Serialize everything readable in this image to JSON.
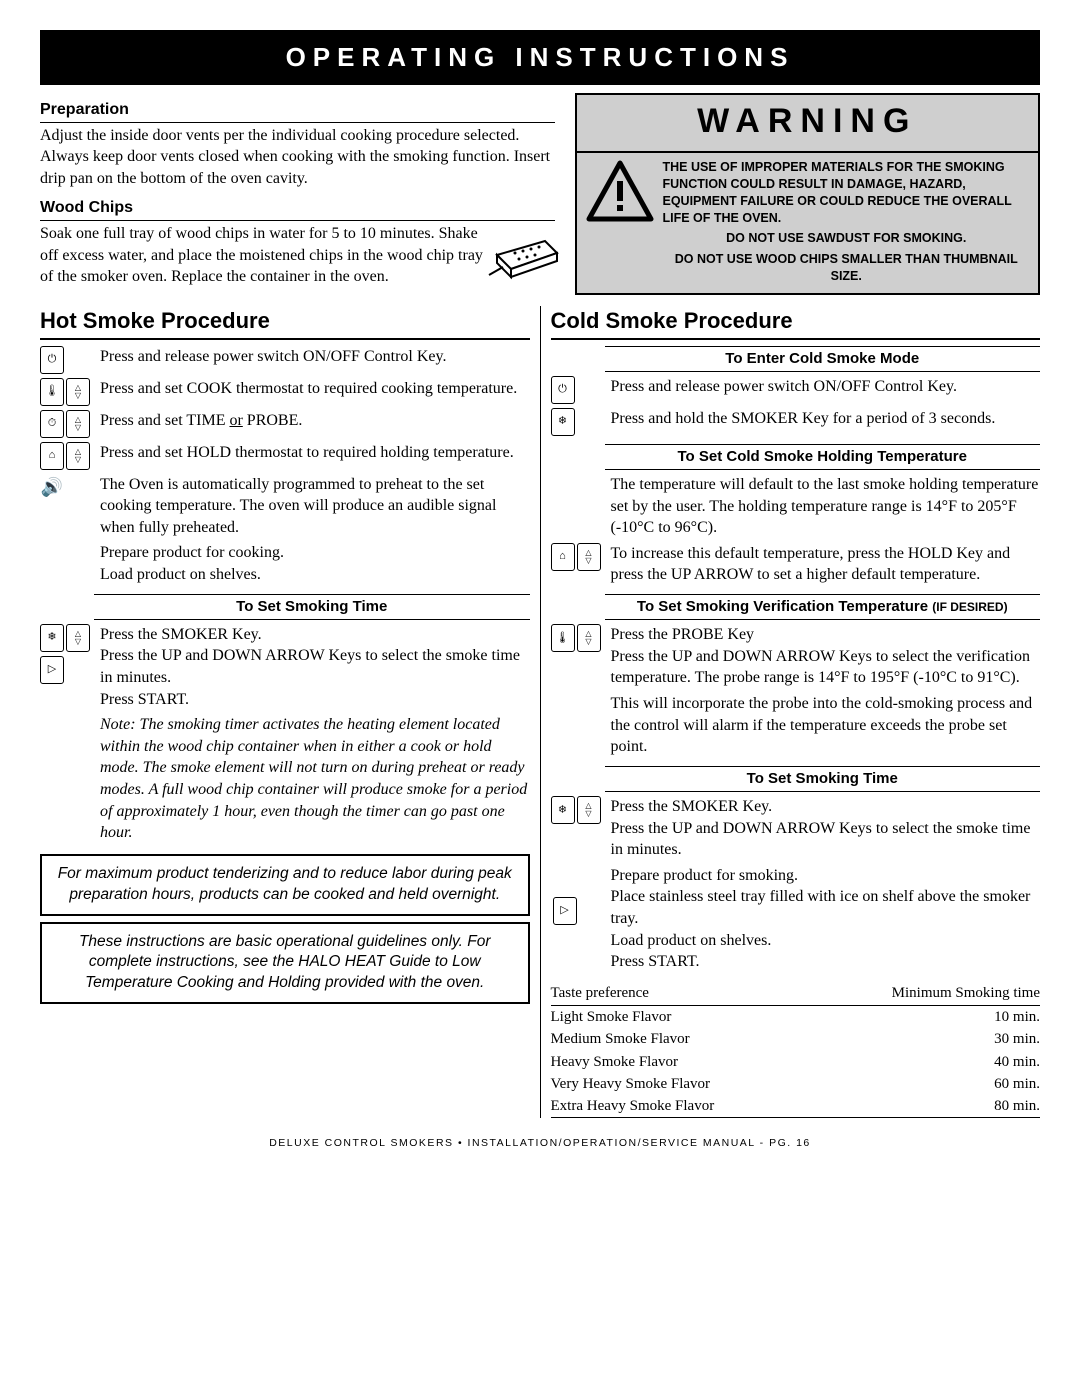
{
  "banner": "OPERATING INSTRUCTIONS",
  "prep": {
    "head": "Preparation",
    "body": "Adjust the inside door vents per the individual cooking procedure selected. Always keep door vents closed when cooking with the smoking function. Insert drip pan on the bottom of the oven cavity."
  },
  "chips": {
    "head": "Wood Chips",
    "body": "Soak one full tray of wood chips in water for 5 to 10 minutes. Shake off excess water, and place the moistened chips in the wood chip tray of the smoker oven. Replace the container in the oven."
  },
  "warning": {
    "title": "WARNING",
    "line1": "THE USE OF IMPROPER MATERIALS FOR THE SMOKING FUNCTION COULD RESULT IN DAMAGE, HAZARD, EQUIPMENT FAILURE OR COULD REDUCE THE OVERALL LIFE OF THE OVEN.",
    "line2": "DO NOT USE SAWDUST FOR SMOKING.",
    "line3": "DO NOT USE WOOD CHIPS SMALLER THAN THUMBNAIL SIZE."
  },
  "hot": {
    "title": "Hot Smoke Procedure",
    "s1": "Press and release power switch ON/OFF Control Key.",
    "s2": "Press and set COOK thermostat to required cooking temperature.",
    "s3a": "Press and set TIME ",
    "s3or": "or",
    "s3b": " PROBE.",
    "s4a": "Press and set H",
    "s4b": " thermostat to required holding temperature.",
    "s4hold": "OLD",
    "s5": "The Oven is automatically programmed to preheat to the set cooking temperature. The oven will produce an audible signal when fully preheated.",
    "s6": "Prepare product for cooking.\nLoad product on shelves.",
    "sub1": "To Set Smoking Time",
    "s7": "Press the SMOKER Key.\nPress the UP and DOWN ARROW Keys to select the smoke time in minutes.\nPress START.",
    "note": "Note: The smoking timer activates the heating element located within the wood chip container when in either a cook or hold mode. The smoke element will not turn on during preheat or ready modes. A full wood chip container will produce smoke for a period of approximately 1 hour, even though the timer can go past one hour.",
    "callout1": "For maximum product tenderizing and to reduce labor during peak preparation hours, products can be cooked and held overnight.",
    "callout2": "These instructions are basic operational guidelines only. For complete instructions, see the HALO HEAT Guide to Low Temperature Cooking and Holding provided with the oven."
  },
  "cold": {
    "title": "Cold Smoke Procedure",
    "sub1": "To Enter Cold Smoke Mode",
    "s1": "Press and release power switch ON/OFF Control Key.",
    "s2": "Press and hold the SMOKER Key for a period of 3 seconds.",
    "sub2": "To Set Cold Smoke Holding Temperature",
    "s3": "The temperature will default to the last smoke holding temperature set by the user. The holding temperature range is 14°F to 205°F (-10°C to 96°C).",
    "s4": "To increase this default temperature, press the HOLD Key and press the UP ARROW to set a higher default temperature.",
    "sub3a": "To Set Smoking Verification Temperature ",
    "sub3b": "(IF DESIRED)",
    "s5": "Press the PROBE Key\nPress the UP and DOWN ARROW Keys to select the verification temperature. The probe range is 14°F to 195°F (-10°C to 91°C).",
    "s6": "This will incorporate the probe into the cold-smoking process and the control will alarm if the temperature exceeds the probe set point.",
    "sub4": "To Set Smoking Time",
    "s7": "Press the SMOKER Key.\nPress the UP and DOWN ARROW Keys to select the smoke time in minutes.",
    "s8": "Prepare product for smoking.\nPlace stainless steel tray filled with ice on shelf above the smoker tray.\nLoad product on shelves.\nPress START."
  },
  "table": {
    "h1": "Taste preference",
    "h2": "Minimum Smoking time",
    "rows": [
      [
        "Light Smoke Flavor",
        "10 min."
      ],
      [
        "Medium Smoke Flavor",
        "30 min."
      ],
      [
        "Heavy Smoke Flavor",
        "40 min."
      ],
      [
        "Very Heavy Smoke Flavor",
        "60 min."
      ],
      [
        "Extra Heavy Smoke Flavor",
        "80 min."
      ]
    ]
  },
  "footer": "DELUXE CONTROL SMOKERS • INSTALLATION/OPERATION/SERVICE MANUAL - PG. 16"
}
